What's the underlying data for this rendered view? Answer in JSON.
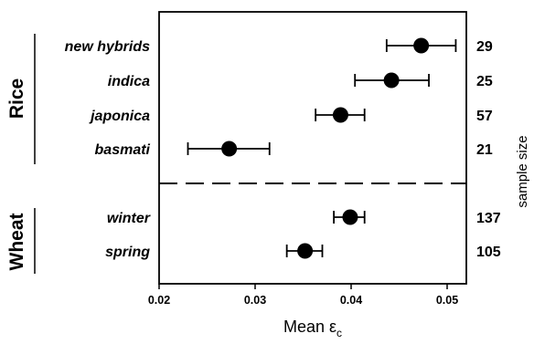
{
  "chart_data": {
    "type": "scatter",
    "subtype": "dot-plot-with-error-bars",
    "xlabel": "Mean ε",
    "xlabel_subscript": "c",
    "right_axis_label": "sample size",
    "xlim": [
      0.02,
      0.052
    ],
    "xticks": [
      "0.02",
      "0.03",
      "0.04",
      "0.05"
    ],
    "xtick_values": [
      0.02,
      0.03,
      0.04,
      0.05
    ],
    "grid": false,
    "groups": [
      {
        "name": "Rice",
        "items": [
          {
            "label": "new hybrids",
            "mean": 0.0473,
            "low": 0.0437,
            "high": 0.0509,
            "n": "29"
          },
          {
            "label": "indica",
            "mean": 0.0442,
            "low": 0.0404,
            "high": 0.0481,
            "n": "25"
          },
          {
            "label": "japonica",
            "mean": 0.0389,
            "low": 0.0363,
            "high": 0.0414,
            "n": "57"
          },
          {
            "label": "basmati",
            "mean": 0.0273,
            "low": 0.023,
            "high": 0.0315,
            "n": "21"
          }
        ]
      },
      {
        "name": "Wheat",
        "items": [
          {
            "label": "winter",
            "mean": 0.0399,
            "low": 0.0382,
            "high": 0.0414,
            "n": "137"
          },
          {
            "label": "spring",
            "mean": 0.0352,
            "low": 0.0333,
            "high": 0.037,
            "n": "105"
          }
        ]
      }
    ]
  }
}
